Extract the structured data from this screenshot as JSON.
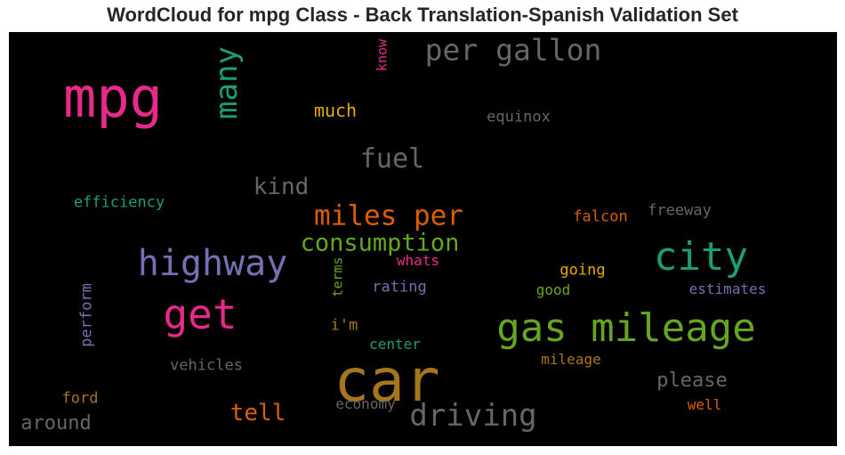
{
  "chart_data": {
    "type": "wordcloud",
    "title": "WordCloud for mpg Class - Back Translation-Spanish Validation Set",
    "background": "#000000",
    "words": [
      {
        "text": "car",
        "color": "#a6761d",
        "vertical": false
      },
      {
        "text": "mpg",
        "color": "#e7298a",
        "vertical": false
      },
      {
        "text": "gas mileage",
        "color": "#66a61e",
        "vertical": false
      },
      {
        "text": "get",
        "color": "#e7298a",
        "vertical": false
      },
      {
        "text": "highway",
        "color": "#7570b3",
        "vertical": false
      },
      {
        "text": "city",
        "color": "#1b9e77",
        "vertical": false
      },
      {
        "text": "driving",
        "color": "#666666",
        "vertical": false
      },
      {
        "text": "per gallon",
        "color": "#666666",
        "vertical": false
      },
      {
        "text": "miles per",
        "color": "#d95f02",
        "vertical": false
      },
      {
        "text": "consumption",
        "color": "#66a61e",
        "vertical": false
      },
      {
        "text": "many",
        "color": "#1b9e77",
        "vertical": true
      },
      {
        "text": "fuel",
        "color": "#666666",
        "vertical": false
      },
      {
        "text": "kind",
        "color": "#666666",
        "vertical": false
      },
      {
        "text": "tell",
        "color": "#d95f02",
        "vertical": false
      },
      {
        "text": "around",
        "color": "#666666",
        "vertical": false
      },
      {
        "text": "please",
        "color": "#666666",
        "vertical": false
      },
      {
        "text": "much",
        "color": "#e6ab02",
        "vertical": false
      },
      {
        "text": "perform",
        "color": "#7570b3",
        "vertical": true
      },
      {
        "text": "efficiency",
        "color": "#1b9e77",
        "vertical": false
      },
      {
        "text": "equinox",
        "color": "#666666",
        "vertical": false
      },
      {
        "text": "falcon",
        "color": "#d95f02",
        "vertical": false
      },
      {
        "text": "freeway",
        "color": "#666666",
        "vertical": false
      },
      {
        "text": "whats",
        "color": "#e7298a",
        "vertical": false
      },
      {
        "text": "going",
        "color": "#e6ab02",
        "vertical": false
      },
      {
        "text": "rating",
        "color": "#7570b3",
        "vertical": false
      },
      {
        "text": "good",
        "color": "#66a61e",
        "vertical": false
      },
      {
        "text": "estimates",
        "color": "#7570b3",
        "vertical": false
      },
      {
        "text": "terms",
        "color": "#66a61e",
        "vertical": true
      },
      {
        "text": "i'm",
        "color": "#a6761d",
        "vertical": false
      },
      {
        "text": "center",
        "color": "#1b9e77",
        "vertical": false
      },
      {
        "text": "mileage",
        "color": "#a6761d",
        "vertical": false
      },
      {
        "text": "vehicles",
        "color": "#666666",
        "vertical": false
      },
      {
        "text": "ford",
        "color": "#a6761d",
        "vertical": false
      },
      {
        "text": "economy",
        "color": "#666666",
        "vertical": false
      },
      {
        "text": "well",
        "color": "#d95f02",
        "vertical": false
      },
      {
        "text": "know",
        "color": "#e7298a",
        "vertical": true
      }
    ]
  }
}
